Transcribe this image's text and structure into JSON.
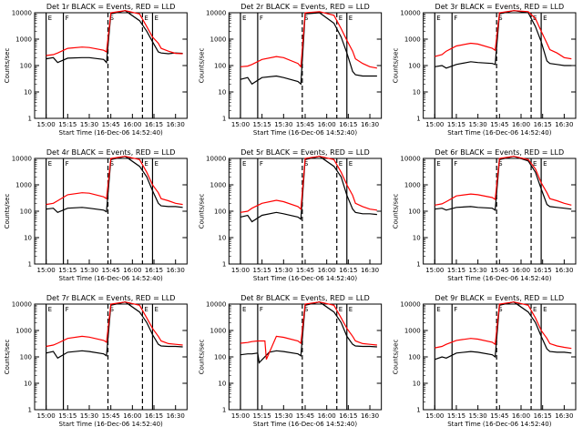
{
  "chart_data": [
    {
      "type": "line",
      "title": "Det 1r BLACK = Events, RED = LLD",
      "xlabel": "Start Time (16-Dec-06 14:52:40)",
      "ylabel": "Counts/sec",
      "yscale": "log",
      "ylim": [
        1,
        10000
      ],
      "x_ticks": [
        "15:00",
        "15:15",
        "15:30",
        "15:45",
        "16:00",
        "16:15",
        "16:30"
      ],
      "y_ticks": [
        "1",
        "10",
        "100",
        "1000",
        "10000"
      ],
      "markers": [
        "E",
        "F",
        "S",
        "E",
        "E"
      ],
      "series": [
        {
          "color": "#000000",
          "x": [
            0,
            5,
            8,
            15,
            25,
            30,
            40,
            42,
            45,
            55,
            65,
            70,
            74,
            78,
            80,
            85,
            90,
            95
          ],
          "y": [
            180,
            200,
            130,
            190,
            200,
            200,
            170,
            130,
            9000,
            12000,
            5000,
            2000,
            800,
            330,
            300,
            280,
            300,
            290
          ]
        },
        {
          "color": "#ff0000",
          "x": [
            0,
            5,
            8,
            15,
            25,
            30,
            40,
            42,
            45,
            55,
            65,
            70,
            74,
            78,
            80,
            85,
            90,
            95
          ],
          "y": [
            240,
            260,
            300,
            450,
            500,
            480,
            380,
            330,
            10000,
            12000,
            9000,
            3000,
            1200,
            700,
            450,
            350,
            290,
            280
          ]
        }
      ]
    },
    {
      "type": "line",
      "title": "Det 2r BLACK = Events, RED = LLD",
      "xlabel": "Start Time (16-Dec-06 14:52:40)",
      "ylabel": "Counts/sec",
      "yscale": "log",
      "ylim": [
        1,
        10000
      ],
      "x_ticks": [
        "15:00",
        "15:15",
        "15:30",
        "15:45",
        "16:00",
        "16:15",
        "16:30"
      ],
      "y_ticks": [
        "1",
        "10",
        "100",
        "1000",
        "10000"
      ],
      "markers": [
        "E",
        "F",
        "S",
        "E",
        "E"
      ],
      "series": [
        {
          "color": "#000000",
          "x": [
            0,
            5,
            8,
            15,
            25,
            30,
            40,
            42,
            45,
            55,
            65,
            70,
            74,
            78,
            80,
            85,
            90,
            95
          ],
          "y": [
            30,
            35,
            20,
            35,
            40,
            35,
            25,
            20,
            9000,
            10000,
            4000,
            1200,
            300,
            60,
            45,
            40,
            40,
            40
          ]
        },
        {
          "color": "#ff0000",
          "x": [
            0,
            5,
            8,
            15,
            25,
            30,
            40,
            42,
            45,
            55,
            65,
            70,
            74,
            78,
            80,
            85,
            90,
            95
          ],
          "y": [
            90,
            95,
            110,
            170,
            220,
            200,
            120,
            90,
            10000,
            11000,
            8000,
            2500,
            900,
            350,
            180,
            120,
            90,
            80
          ]
        }
      ]
    },
    {
      "type": "line",
      "title": "Det 3r BLACK = Events, RED = LLD",
      "xlabel": "Start Time (16-Dec-06 14:52:40)",
      "ylabel": "Counts/sec",
      "yscale": "log",
      "ylim": [
        1,
        10000
      ],
      "x_ticks": [
        "15:00",
        "15:15",
        "15:30",
        "15:45",
        "16:00",
        "16:15",
        "16:30"
      ],
      "y_ticks": [
        "1",
        "10",
        "100",
        "1000",
        "10000"
      ],
      "markers": [
        "E",
        "F",
        "S",
        "E",
        "E"
      ],
      "series": [
        {
          "color": "#000000",
          "x": [
            0,
            5,
            8,
            15,
            25,
            30,
            40,
            42,
            45,
            55,
            65,
            70,
            74,
            78,
            80,
            85,
            90,
            95
          ],
          "y": [
            90,
            100,
            80,
            110,
            140,
            130,
            120,
            110,
            9000,
            12000,
            10000,
            3000,
            800,
            150,
            120,
            110,
            100,
            100
          ]
        },
        {
          "color": "#ff0000",
          "x": [
            0,
            5,
            8,
            15,
            25,
            30,
            40,
            42,
            45,
            55,
            65,
            70,
            74,
            78,
            80,
            85,
            90,
            95
          ],
          "y": [
            220,
            260,
            350,
            550,
            700,
            650,
            450,
            380,
            10000,
            12000,
            11000,
            6000,
            2000,
            700,
            400,
            300,
            200,
            180
          ]
        }
      ]
    },
    {
      "type": "line",
      "title": "Det 4r BLACK = Events, RED = LLD",
      "xlabel": "Start Time (16-Dec-06 14:52:40)",
      "ylabel": "Counts/sec",
      "yscale": "log",
      "ylim": [
        1,
        10000
      ],
      "x_ticks": [
        "15:00",
        "15:15",
        "15:30",
        "15:45",
        "16:00",
        "16:15",
        "16:30"
      ],
      "y_ticks": [
        "1",
        "10",
        "100",
        "1000",
        "10000"
      ],
      "markers": [
        "E",
        "F",
        "S",
        "E",
        "E"
      ],
      "series": [
        {
          "color": "#000000",
          "x": [
            0,
            5,
            8,
            15,
            25,
            30,
            40,
            42,
            45,
            55,
            65,
            70,
            74,
            78,
            80,
            85,
            90,
            95
          ],
          "y": [
            120,
            130,
            90,
            130,
            140,
            130,
            110,
            95,
            9000,
            12000,
            5000,
            2000,
            600,
            200,
            160,
            150,
            150,
            140
          ]
        },
        {
          "color": "#ff0000",
          "x": [
            0,
            5,
            8,
            15,
            25,
            30,
            40,
            42,
            45,
            55,
            65,
            70,
            74,
            78,
            80,
            85,
            90,
            95
          ],
          "y": [
            180,
            200,
            250,
            420,
            500,
            480,
            350,
            300,
            10000,
            12000,
            9000,
            3000,
            1000,
            500,
            300,
            250,
            200,
            180
          ]
        }
      ]
    },
    {
      "type": "line",
      "title": "Det 5r BLACK = Events, RED = LLD",
      "xlabel": "Start Time (16-Dec-06 14:52:40)",
      "ylabel": "Counts/sec",
      "yscale": "log",
      "ylim": [
        1,
        10000
      ],
      "x_ticks": [
        "15:00",
        "15:15",
        "15:30",
        "15:45",
        "16:00",
        "16:15",
        "16:30"
      ],
      "y_ticks": [
        "1",
        "10",
        "100",
        "1000",
        "10000"
      ],
      "markers": [
        "E",
        "F",
        "S",
        "E",
        "E"
      ],
      "series": [
        {
          "color": "#000000",
          "x": [
            0,
            5,
            8,
            15,
            25,
            30,
            40,
            42,
            45,
            55,
            65,
            70,
            74,
            78,
            80,
            85,
            90,
            95
          ],
          "y": [
            60,
            70,
            40,
            70,
            90,
            80,
            60,
            50,
            9000,
            12000,
            5000,
            2000,
            400,
            120,
            90,
            80,
            80,
            75
          ]
        },
        {
          "color": "#ff0000",
          "x": [
            0,
            5,
            8,
            15,
            25,
            30,
            40,
            42,
            45,
            55,
            65,
            70,
            74,
            78,
            80,
            85,
            90,
            95
          ],
          "y": [
            90,
            100,
            130,
            200,
            260,
            230,
            150,
            120,
            10000,
            12000,
            9000,
            3000,
            1000,
            400,
            200,
            150,
            120,
            110
          ]
        }
      ]
    },
    {
      "type": "line",
      "title": "Det 6r BLACK = Events, RED = LLD",
      "xlabel": "Start Time (16-Dec-06 14:52:40)",
      "ylabel": "Counts/sec",
      "yscale": "log",
      "ylim": [
        1,
        10000
      ],
      "x_ticks": [
        "15:00",
        "15:15",
        "15:30",
        "15:45",
        "16:00",
        "16:15",
        "16:30"
      ],
      "y_ticks": [
        "1",
        "10",
        "100",
        "1000",
        "10000"
      ],
      "markers": [
        "E",
        "F",
        "S",
        "E",
        "E"
      ],
      "series": [
        {
          "color": "#000000",
          "x": [
            0,
            5,
            8,
            15,
            25,
            30,
            40,
            42,
            45,
            55,
            65,
            70,
            74,
            78,
            80,
            85,
            90,
            95
          ],
          "y": [
            120,
            130,
            110,
            140,
            150,
            140,
            130,
            110,
            9000,
            12000,
            8000,
            3000,
            700,
            180,
            150,
            140,
            130,
            120
          ]
        },
        {
          "color": "#ff0000",
          "x": [
            0,
            5,
            8,
            15,
            25,
            30,
            40,
            42,
            45,
            55,
            65,
            70,
            74,
            78,
            80,
            85,
            90,
            95
          ],
          "y": [
            170,
            190,
            230,
            380,
            450,
            420,
            330,
            280,
            10000,
            12000,
            9000,
            4000,
            1200,
            500,
            300,
            250,
            200,
            170
          ]
        }
      ]
    },
    {
      "type": "line",
      "title": "Det 7r BLACK = Events, RED = LLD",
      "xlabel": "Start Time (16-Dec-06 14:52:40)",
      "ylabel": "Counts/sec",
      "yscale": "log",
      "ylim": [
        1,
        10000
      ],
      "x_ticks": [
        "15:00",
        "15:15",
        "15:30",
        "15:45",
        "16:00",
        "16:15",
        "16:30"
      ],
      "y_ticks": [
        "1",
        "10",
        "100",
        "1000",
        "10000"
      ],
      "markers": [
        "E",
        "F",
        "S",
        "E",
        "E"
      ],
      "series": [
        {
          "color": "#000000",
          "x": [
            0,
            5,
            8,
            15,
            25,
            30,
            40,
            42,
            45,
            55,
            65,
            70,
            74,
            78,
            80,
            85,
            90,
            95
          ],
          "y": [
            140,
            160,
            90,
            150,
            170,
            160,
            130,
            110,
            9000,
            12000,
            5000,
            2000,
            700,
            300,
            260,
            250,
            250,
            240
          ]
        },
        {
          "color": "#ff0000",
          "x": [
            0,
            5,
            8,
            15,
            25,
            30,
            40,
            42,
            45,
            55,
            65,
            70,
            74,
            78,
            80,
            85,
            90,
            95
          ],
          "y": [
            250,
            280,
            330,
            500,
            600,
            560,
            420,
            360,
            10000,
            12000,
            9000,
            3000,
            1200,
            600,
            400,
            320,
            300,
            280
          ]
        }
      ]
    },
    {
      "type": "line",
      "title": "Det 8r BLACK = Events, RED = LLD",
      "xlabel": "Start Time (16-Dec-06 14:52:40)",
      "ylabel": "Counts/sec",
      "yscale": "log",
      "ylim": [
        1,
        10000
      ],
      "x_ticks": [
        "15:00",
        "15:15",
        "15:30",
        "15:45",
        "16:00",
        "16:15",
        "16:30"
      ],
      "y_ticks": [
        "1",
        "10",
        "100",
        "1000",
        "10000"
      ],
      "markers": [
        "E",
        "F",
        "S",
        "E",
        "E"
      ],
      "series": [
        {
          "color": "#000000",
          "x": [
            0,
            5,
            8,
            12,
            13,
            20,
            25,
            30,
            40,
            42,
            45,
            55,
            65,
            70,
            74,
            78,
            80,
            85,
            90,
            95
          ],
          "y": [
            120,
            130,
            130,
            140,
            60,
            150,
            170,
            160,
            130,
            110,
            9000,
            12000,
            5000,
            2000,
            600,
            300,
            260,
            250,
            250,
            240
          ]
        },
        {
          "color": "#ff0000",
          "x": [
            0,
            5,
            8,
            12,
            13,
            17,
            18,
            25,
            30,
            40,
            42,
            45,
            55,
            65,
            70,
            74,
            78,
            80,
            85,
            90,
            95
          ],
          "y": [
            330,
            350,
            380,
            400,
            400,
            400,
            80,
            600,
            550,
            400,
            330,
            10000,
            12000,
            9000,
            3000,
            1200,
            600,
            400,
            320,
            300,
            280
          ]
        }
      ]
    },
    {
      "type": "line",
      "title": "Det 9r BLACK = Events, RED = LLD",
      "xlabel": "Start Time (16-Dec-06 14:52:40)",
      "ylabel": "Counts/sec",
      "yscale": "log",
      "ylim": [
        1,
        10000
      ],
      "x_ticks": [
        "15:00",
        "15:15",
        "15:30",
        "15:45",
        "16:00",
        "16:15",
        "16:30"
      ],
      "y_ticks": [
        "1",
        "10",
        "100",
        "1000",
        "10000"
      ],
      "markers": [
        "E",
        "F",
        "S",
        "E",
        "E"
      ],
      "series": [
        {
          "color": "#000000",
          "x": [
            0,
            5,
            8,
            15,
            25,
            30,
            40,
            42,
            45,
            55,
            65,
            70,
            74,
            78,
            80,
            85,
            90,
            95
          ],
          "y": [
            80,
            100,
            90,
            140,
            160,
            150,
            120,
            100,
            9000,
            12000,
            5000,
            2000,
            600,
            200,
            160,
            150,
            150,
            140
          ]
        },
        {
          "color": "#ff0000",
          "x": [
            0,
            5,
            8,
            15,
            25,
            30,
            40,
            42,
            45,
            55,
            65,
            70,
            74,
            78,
            80,
            85,
            90,
            95
          ],
          "y": [
            220,
            250,
            300,
            420,
            500,
            470,
            360,
            300,
            10000,
            12000,
            9000,
            3000,
            1000,
            500,
            320,
            260,
            230,
            210
          ]
        }
      ]
    }
  ]
}
